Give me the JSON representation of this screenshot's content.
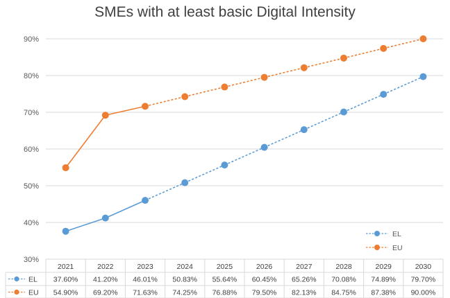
{
  "chart_data": {
    "type": "line",
    "title": "SMEs with at least basic Digital Intensity",
    "categories": [
      "2021",
      "2022",
      "2023",
      "2024",
      "2025",
      "2026",
      "2027",
      "2028",
      "2029",
      "2030"
    ],
    "series": [
      {
        "name": "EL",
        "values": [
          37.6,
          41.2,
          46.01,
          50.83,
          55.64,
          60.45,
          65.26,
          70.08,
          74.89,
          79.7
        ],
        "labels": [
          "37.60%",
          "41.20%",
          "46.01%",
          "50.83%",
          "55.64%",
          "60.45%",
          "65.26%",
          "70.08%",
          "74.89%",
          "79.70%"
        ],
        "color": "#5b9bd5",
        "solid_until_index": 2
      },
      {
        "name": "EU",
        "values": [
          54.9,
          69.2,
          71.63,
          74.25,
          76.88,
          79.5,
          82.13,
          84.75,
          87.38,
          90.0
        ],
        "labels": [
          "54.90%",
          "69.20%",
          "71.63%",
          "74.25%",
          "76.88%",
          "79.50%",
          "82.13%",
          "84.75%",
          "87.38%",
          "90.00%"
        ],
        "color": "#ed7d31",
        "solid_until_index": 2
      }
    ],
    "ylim": [
      30,
      90
    ],
    "yticks": [
      "30%",
      "40%",
      "50%",
      "60%",
      "70%",
      "80%",
      "90%"
    ],
    "grid": true,
    "legend": "bottom-right",
    "data_table": true
  }
}
